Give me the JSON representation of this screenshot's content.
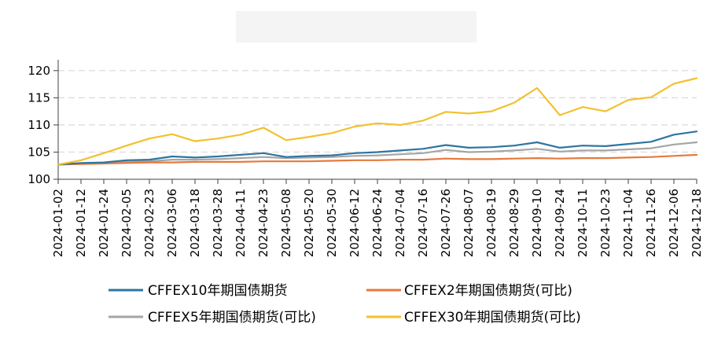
{
  "chart_data": {
    "type": "line",
    "title": "",
    "xlabel": "",
    "ylabel": "",
    "ylim": [
      100,
      122
    ],
    "yticks": [
      100,
      105,
      110,
      115,
      120
    ],
    "x_tick_labels": [
      "2024-01-02",
      "2024-01-12",
      "2024-01-24",
      "2024-02-05",
      "2024-02-23",
      "2024-03-06",
      "2024-03-18",
      "2024-03-28",
      "2024-04-11",
      "2024-04-23",
      "2024-05-08",
      "2024-05-20",
      "2024-05-30",
      "2024-06-12",
      "2024-06-24",
      "2024-07-04",
      "2024-07-16",
      "2024-07-26",
      "2024-08-07",
      "2024-08-19",
      "2024-08-29",
      "2024-09-10",
      "2024-09-24",
      "2024-10-11",
      "2024-10-23",
      "2024-11-04",
      "2024-11-26",
      "2024-12-06",
      "2024-12-18"
    ],
    "grid": "horizontal dashed",
    "legend_position": "bottom",
    "series": [
      {
        "name": "CFFEX10年期国债期货",
        "color": "#2e75a0",
        "values": [
          102.7,
          103.0,
          103.1,
          103.5,
          103.6,
          104.2,
          104.0,
          104.2,
          104.5,
          104.8,
          104.1,
          104.3,
          104.4,
          104.8,
          105.0,
          105.3,
          105.6,
          106.3,
          105.8,
          105.9,
          106.2,
          106.8,
          105.8,
          106.2,
          106.1,
          106.5,
          106.9,
          108.2,
          108.8
        ]
      },
      {
        "name": "CFFEX2年期国债期货(可比)",
        "color": "#e67a3c",
        "values": [
          102.7,
          102.8,
          102.9,
          103.0,
          103.1,
          103.1,
          103.2,
          103.2,
          103.2,
          103.3,
          103.3,
          103.3,
          103.4,
          103.5,
          103.5,
          103.6,
          103.6,
          103.8,
          103.7,
          103.7,
          103.8,
          103.9,
          103.8,
          103.9,
          103.9,
          104.0,
          104.1,
          104.3,
          104.5
        ]
      },
      {
        "name": "CFFEX5年期国债期货(可比)",
        "color": "#a5a5a5",
        "values": [
          102.7,
          102.9,
          103.0,
          103.2,
          103.3,
          103.6,
          103.6,
          103.7,
          103.9,
          104.1,
          103.9,
          104.0,
          104.1,
          104.3,
          104.4,
          104.6,
          104.8,
          105.4,
          105.0,
          105.1,
          105.3,
          105.6,
          105.1,
          105.3,
          105.3,
          105.5,
          105.7,
          106.4,
          106.8
        ]
      },
      {
        "name": "CFFEX30年期国债期货(可比)",
        "color": "#f2c12e",
        "values": [
          102.7,
          103.5,
          104.8,
          106.2,
          107.5,
          108.3,
          107.0,
          107.5,
          108.2,
          109.5,
          107.2,
          107.8,
          108.5,
          109.7,
          110.3,
          110.0,
          110.8,
          112.4,
          112.1,
          112.5,
          114.1,
          116.8,
          111.8,
          113.3,
          112.5,
          114.6,
          115.1,
          117.6,
          118.6
        ]
      }
    ]
  }
}
